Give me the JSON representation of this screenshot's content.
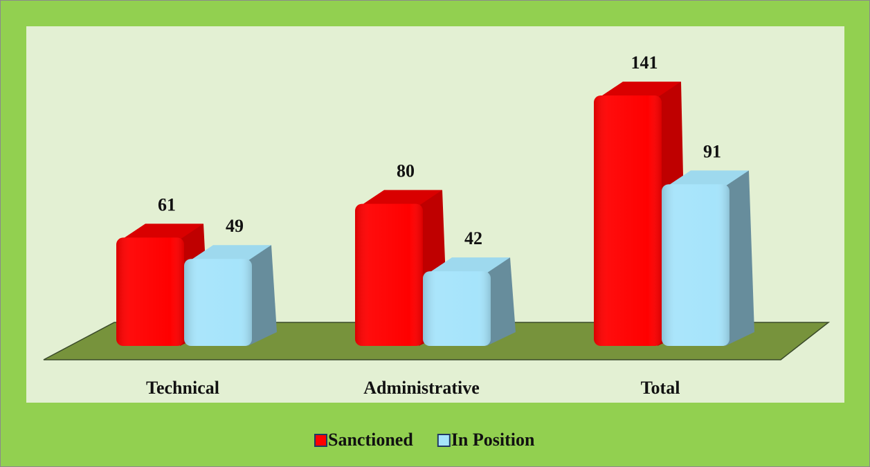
{
  "chart_data": {
    "type": "bar",
    "categories": [
      "Technical",
      "Administrative",
      "Total"
    ],
    "series": [
      {
        "name": "Sanctioned",
        "color": "#ff0000",
        "values": [
          61,
          80,
          141
        ]
      },
      {
        "name": "In Position",
        "color": "#a6e4fb",
        "values": [
          49,
          42,
          91
        ]
      }
    ],
    "legend": "bottom"
  }
}
